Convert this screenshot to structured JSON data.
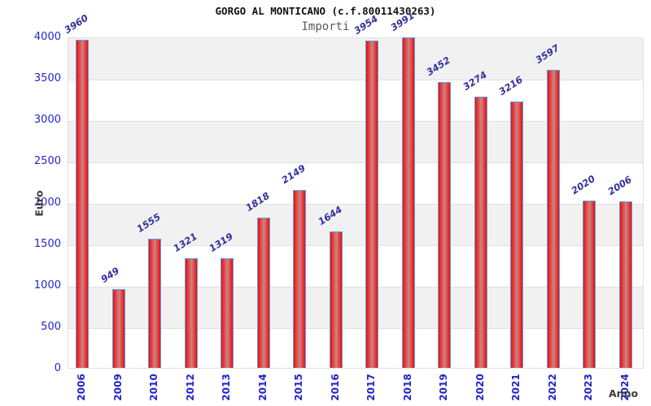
{
  "chart_data": {
    "type": "bar",
    "title": "GORGO AL MONTICANO (c.f.80011430263)",
    "subtitle": "Importi",
    "xlabel": "Anno",
    "ylabel": "Euro",
    "categories": [
      "2006",
      "2009",
      "2010",
      "2012",
      "2013",
      "2014",
      "2015",
      "2016",
      "2017",
      "2018",
      "2019",
      "2020",
      "2021",
      "2022",
      "2023",
      "2024"
    ],
    "values": [
      3960,
      949,
      1555,
      1321,
      1319,
      1818,
      2149,
      1644,
      3954,
      3991,
      3452,
      3274,
      3216,
      3597,
      2020,
      2006
    ],
    "ylim": [
      0,
      4000
    ],
    "ytick_step": 500,
    "grid": true,
    "legend": "none",
    "colors": {
      "bar_edge": "#d31616",
      "bar_bright": "#ef2222",
      "bar_center": "#c98585",
      "bar_border": "#5aa2e0",
      "tick_label": "#2424cc",
      "value_label": "#31319e",
      "axis_title": "#3c3c3c",
      "band": "#f1f1f1",
      "band_alt": "#ffffff",
      "gridline": "#e0e0e0"
    }
  }
}
